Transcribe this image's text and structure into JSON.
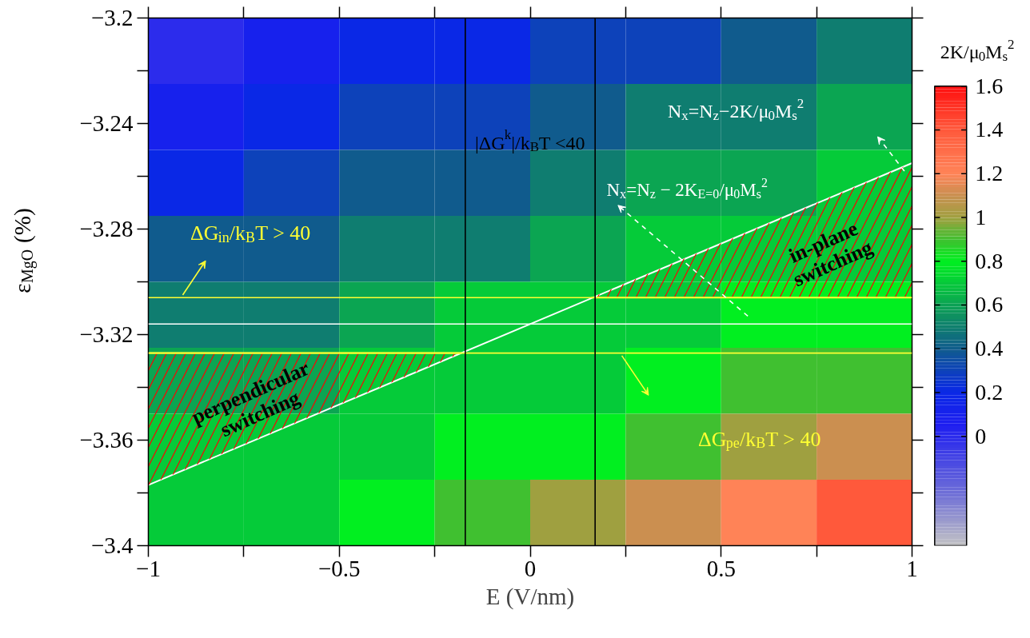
{
  "chart_data": {
    "type": "heatmap",
    "xlabel": "E (V/nm)",
    "ylabel": "ε$_{MgO}$ (%)",
    "clabel": "2K/μ$_{0}$M$_{s}$$^{2}$",
    "x": [
      -0.875,
      -0.625,
      -0.375,
      -0.125,
      0.125,
      0.375,
      0.625,
      0.875
    ],
    "y": [
      -3.2125,
      -3.2375,
      -3.2625,
      -3.2875,
      -3.3125,
      -3.3375,
      -3.3625,
      -3.3875
    ],
    "cells": [
      [
        0.0,
        0.1,
        0.2,
        0.2,
        0.3,
        0.3,
        0.4,
        0.5
      ],
      [
        0.1,
        0.2,
        0.3,
        0.3,
        0.4,
        0.5,
        0.5,
        0.6
      ],
      [
        0.2,
        0.3,
        0.4,
        0.4,
        0.5,
        0.6,
        0.6,
        0.7
      ],
      [
        0.4,
        0.4,
        0.5,
        0.5,
        0.6,
        0.7,
        0.7,
        0.7
      ],
      [
        0.5,
        0.5,
        0.6,
        0.7,
        0.7,
        0.7,
        0.8,
        0.8
      ],
      [
        0.6,
        0.6,
        0.7,
        0.7,
        0.7,
        0.8,
        0.9,
        0.9
      ],
      [
        0.7,
        0.7,
        0.7,
        0.8,
        0.8,
        0.9,
        1.0,
        1.1
      ],
      [
        0.7,
        0.7,
        0.8,
        0.9,
        1.0,
        1.1,
        1.2,
        1.4
      ]
    ],
    "clim": [
      -0.5,
      1.6
    ],
    "cticks": [
      0,
      0.2,
      0.4,
      0.6,
      0.8,
      1,
      1.2,
      1.4,
      1.6
    ],
    "xlim": [
      -1,
      1
    ],
    "xticks": [
      -1,
      {
        "value": -0.75,
        "label": null
      },
      -0.5,
      {
        "value": -0.25,
        "label": null
      },
      0,
      {
        "value": 0.25,
        "label": null
      },
      0.5,
      {
        "value": 0.75,
        "label": null
      },
      1
    ],
    "ylim": [
      -3.4,
      -3.2
    ],
    "yticks": [
      -3.4,
      {
        "value": -3.38,
        "label": null
      },
      -3.36,
      {
        "value": -3.34,
        "label": null
      },
      -3.32,
      {
        "value": -3.3,
        "label": null
      },
      -3.28,
      {
        "value": -3.26,
        "label": null
      },
      -3.24,
      {
        "value": -3.22,
        "label": null
      },
      -3.2
    ],
    "series": [
      {
        "type": "line",
        "color": "#ffffff",
        "x": [
          -1,
          1
        ],
        "values": [
          -3.377,
          -3.255
        ]
      },
      {
        "type": "line",
        "color": "#ffff33",
        "x": [
          0.16,
          1
        ],
        "values": [
          -3.306,
          -3.306
        ],
        "lower": [
          -3.306,
          -3.306
        ],
        "upper": [
          -3.306,
          -3.255
        ]
      },
      {
        "type": "line",
        "color": "#ffff33",
        "x": [
          -1,
          -0.18
        ],
        "values": [
          -3.327,
          -3.327
        ],
        "lower": [
          -3.377,
          -3.327
        ],
        "upper": [
          -3.327,
          -3.327
        ]
      }
    ],
    "ref_lines": [
      {
        "axis": "y",
        "value": -3.306,
        "color": "#ffff33"
      },
      {
        "axis": "y",
        "value": -3.316,
        "color": "#ffffff"
      },
      {
        "axis": "y",
        "value": -3.327,
        "color": "#ffff33"
      },
      {
        "axis": "x",
        "value": -0.17,
        "color": "#000000"
      },
      {
        "axis": "x",
        "value": 0.17,
        "color": "#000000"
      }
    ],
    "annotations": [
      "|ΔG$^{k}$|/k$_{B}$T <40",
      "ΔG$_{in}$/k$_{B}$T > 40",
      "ΔG$_{pe}$/k$_{B}$T > 40",
      "N$_{x}$=N$_{z}$−2K/μ$_{0}$M$_{s}$$^{2}$",
      "N$_{x}$=N$_{z}$ − 2K$_{E=0}$/μ$_{0}$M$_{s}$$^{2}$",
      "in-plane\nswitching",
      "perpendicular\nswitching"
    ]
  }
}
